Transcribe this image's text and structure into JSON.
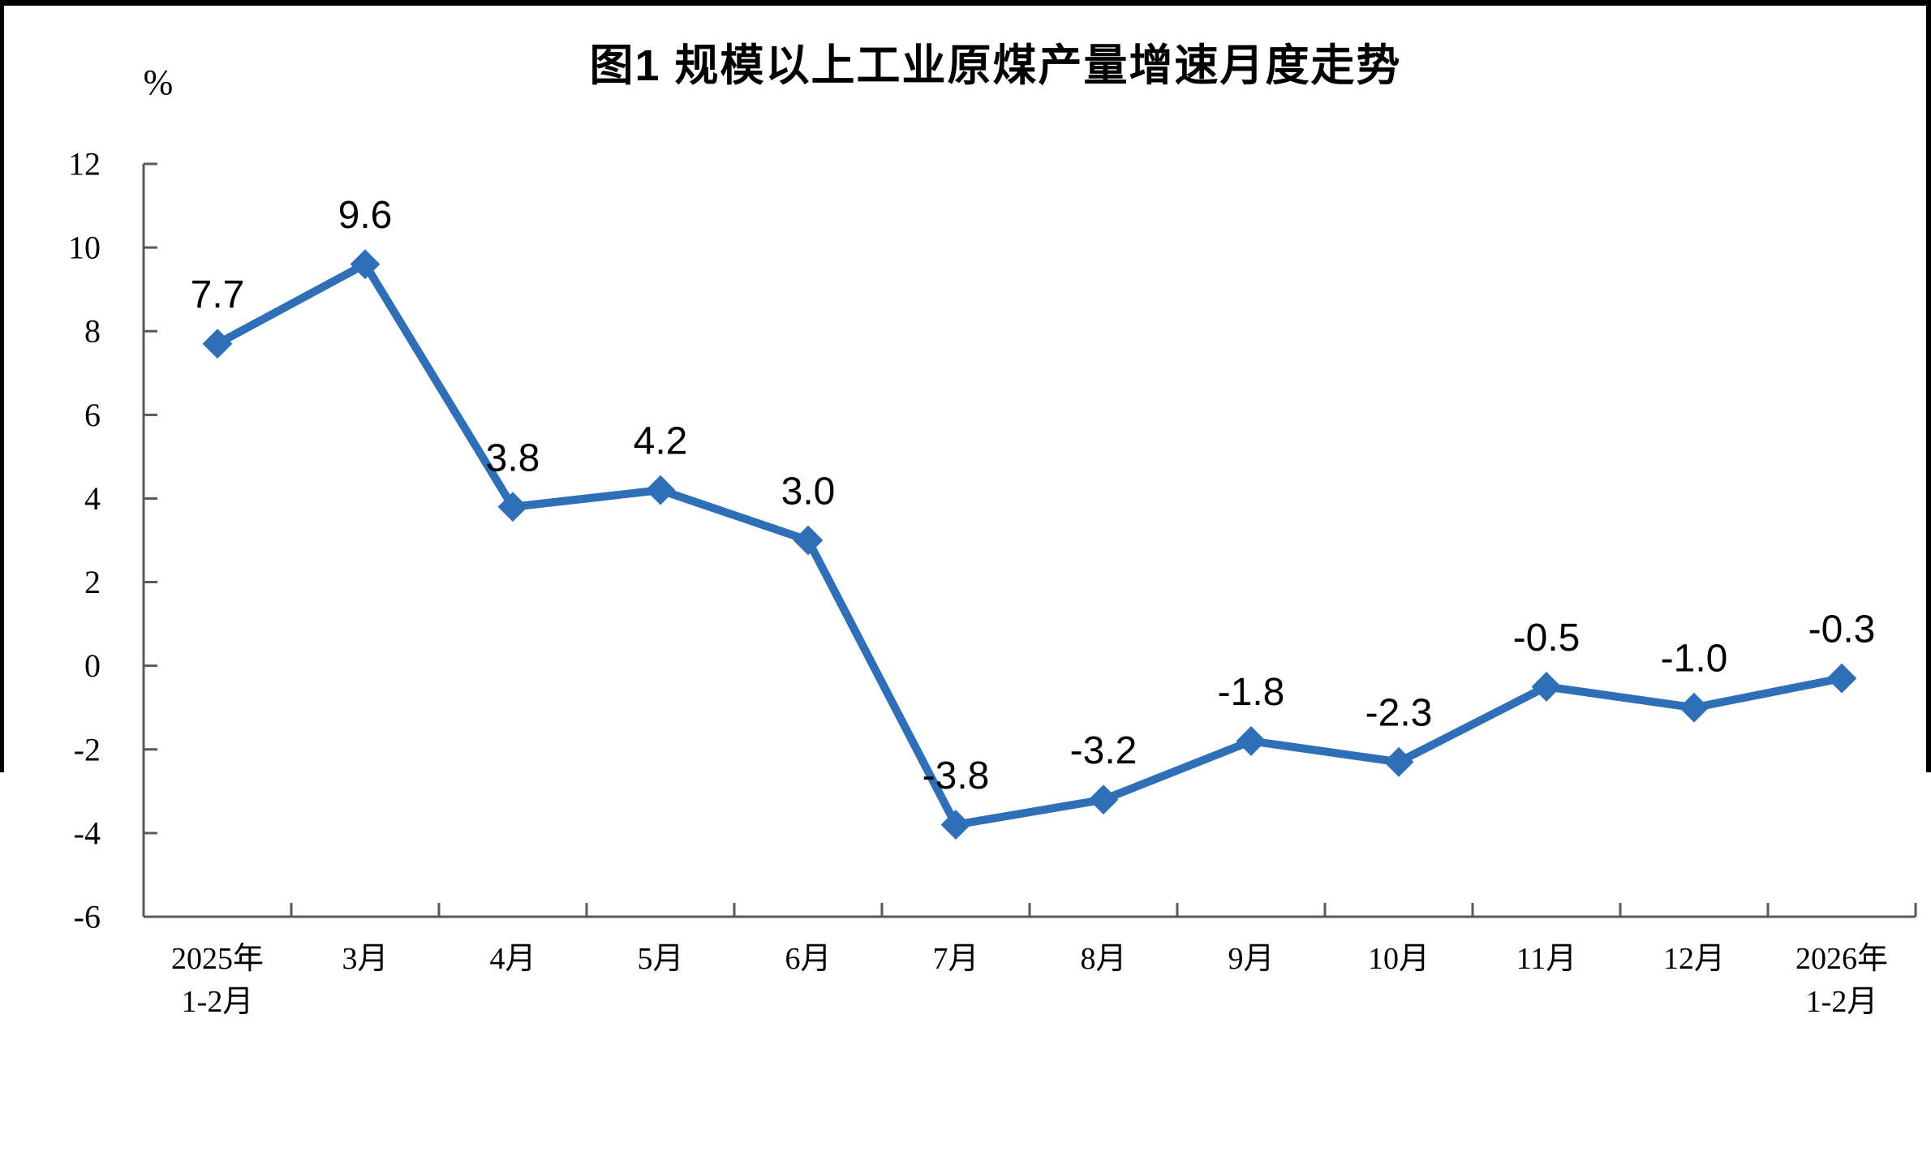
{
  "figure": {
    "title": "图1 规模以上工业原煤产量增速月度走势",
    "unit_label": "%",
    "frame_color": "#000000",
    "background_color": "#ffffff"
  },
  "chart_data": {
    "type": "line",
    "title": "图1 规模以上工业原煤产量增速月度走势",
    "unit_label": "%",
    "categories": [
      "2025年\n1-2月",
      "3月",
      "4月",
      "5月",
      "6月",
      "7月",
      "8月",
      "9月",
      "10月",
      "11月",
      "12月",
      "2026年\n1-2月"
    ],
    "values": [
      7.7,
      9.6,
      3.8,
      4.2,
      3.0,
      -3.8,
      -3.2,
      -1.8,
      -2.3,
      -0.5,
      -1.0,
      -0.3
    ],
    "data_labels": [
      "7.7",
      "9.6",
      "3.8",
      "4.2",
      "3.0",
      "-3.8",
      "-3.2",
      "-1.8",
      "-2.3",
      "-0.5",
      "-1.0",
      "-0.3"
    ],
    "ylabel": "%",
    "xlabel": "",
    "ylim": [
      -6,
      12
    ],
    "y_ticks": [
      12,
      10,
      8,
      6,
      4,
      2,
      0,
      -2,
      -4,
      -6
    ],
    "grid": false,
    "legend": null,
    "line_color": "#2E6FB7",
    "marker": "diamond",
    "axis_color": "#595959"
  }
}
